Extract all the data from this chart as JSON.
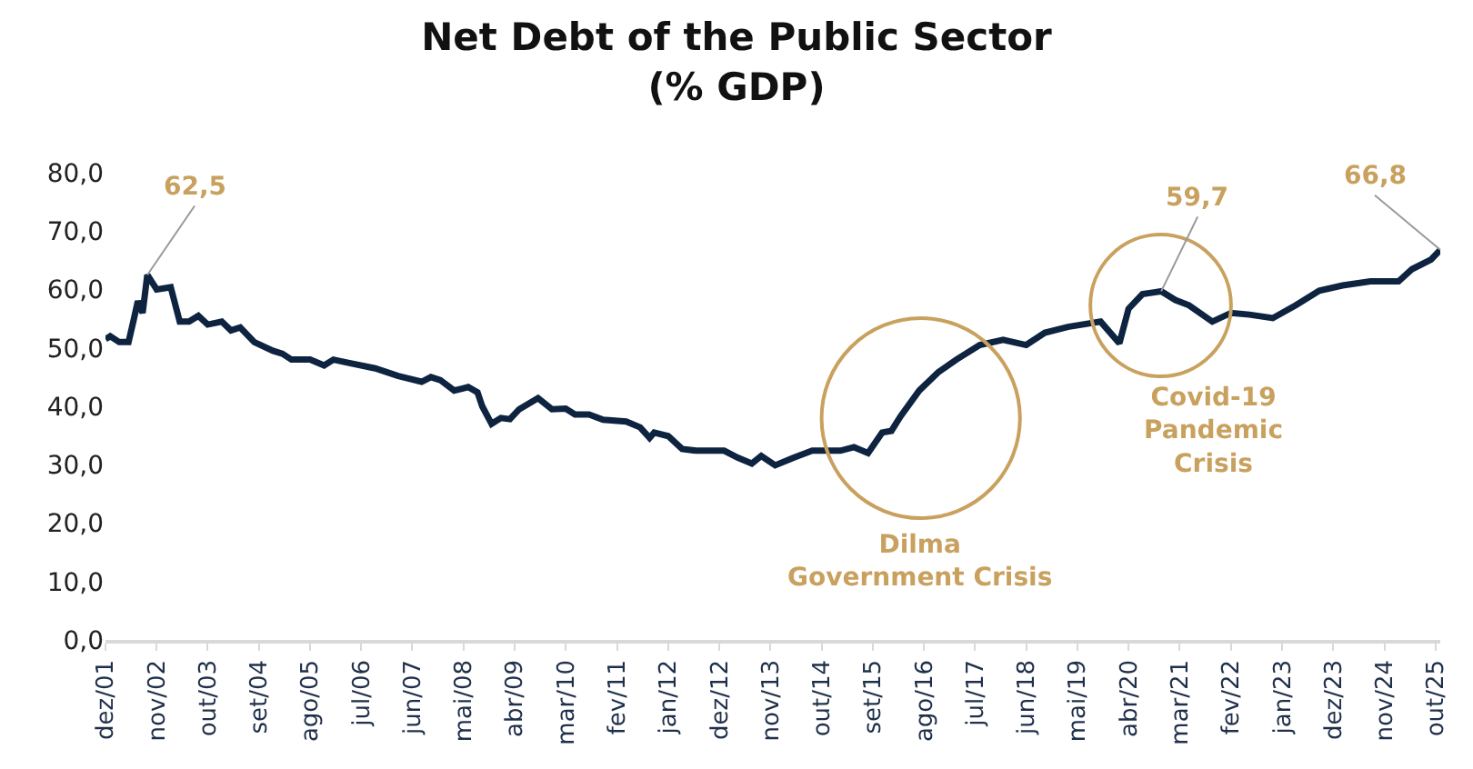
{
  "chart_data": {
    "type": "line",
    "title": "Net Debt of the Public Sector\n(% GDP)",
    "x": [
      "2001-12",
      "2002-01",
      "2002-03",
      "2002-05",
      "2002-06",
      "2002-07",
      "2002-08",
      "2002-09",
      "2002-11",
      "2003-02",
      "2003-04",
      "2003-06",
      "2003-08",
      "2003-10",
      "2004-01",
      "2004-03",
      "2004-05",
      "2004-08",
      "2004-12",
      "2005-02",
      "2005-04",
      "2005-08",
      "2005-11",
      "2006-01",
      "2006-04",
      "2006-10",
      "2007-03",
      "2007-08",
      "2007-10",
      "2007-12",
      "2008-03",
      "2008-06",
      "2008-08",
      "2008-09",
      "2008-11",
      "2009-01",
      "2009-03",
      "2009-05",
      "2009-09",
      "2009-12",
      "2010-03",
      "2010-05",
      "2010-08",
      "2010-11",
      "2011-04",
      "2011-07",
      "2011-09",
      "2011-10",
      "2012-01",
      "2012-04",
      "2012-07",
      "2013-01",
      "2013-04",
      "2013-07",
      "2013-09",
      "2013-12",
      "2014-04",
      "2014-08",
      "2015-02",
      "2015-05",
      "2015-08",
      "2015-11",
      "2016-01",
      "2016-03",
      "2016-07",
      "2016-11",
      "2017-03",
      "2017-08",
      "2018-01",
      "2018-06",
      "2018-10",
      "2019-03",
      "2019-10",
      "2020-02",
      "2020-04",
      "2020-07",
      "2020-11",
      "2021-02",
      "2021-05",
      "2021-10",
      "2022-02",
      "2022-06",
      "2022-11",
      "2023-04",
      "2023-09",
      "2024-02",
      "2024-08",
      "2025-02",
      "2025-05",
      "2025-09",
      "2025-11"
    ],
    "series": [
      {
        "color": "#0d2340",
        "values": [
          51.5,
          52,
          51,
          51,
          54.5,
          58,
          56,
          62.5,
          60,
          60.4,
          54.5,
          54.5,
          55.5,
          54,
          54.5,
          53,
          53.5,
          51,
          49.5,
          49,
          48,
          48,
          47,
          48,
          47.5,
          46.5,
          45.2,
          44.2,
          45,
          44.5,
          42.7,
          43.3,
          42.4,
          40,
          37,
          38,
          37.8,
          39.5,
          41.4,
          39.5,
          39.6,
          38.6,
          38.6,
          37.7,
          37.4,
          36.4,
          34.6,
          35.5,
          34.9,
          32.7,
          32.4,
          32.4,
          31.2,
          30.2,
          31.5,
          29.9,
          31.2,
          32.4,
          32.4,
          33,
          32,
          35.5,
          35.8,
          38.3,
          42.7,
          45.8,
          48,
          50.5,
          51.4,
          50.5,
          52.6,
          53.6,
          54.5,
          50.8,
          56.7,
          59.2,
          59.7,
          58.2,
          57.3,
          54.5,
          56,
          55.7,
          55.1,
          57.3,
          59.8,
          60.7,
          61.4,
          61.4,
          63.5,
          65.1,
          66.8
        ]
      }
    ],
    "xlim": [
      "2001-12",
      "2025-11"
    ],
    "xticks": [
      {
        "value": "2001-12",
        "label": "dez/01"
      },
      {
        "value": "2002-11",
        "label": "nov/02"
      },
      {
        "value": "2003-10",
        "label": "out/03"
      },
      {
        "value": "2004-09",
        "label": "set/04"
      },
      {
        "value": "2005-08",
        "label": "ago/05"
      },
      {
        "value": "2006-07",
        "label": "jul/06"
      },
      {
        "value": "2007-06",
        "label": "jun/07"
      },
      {
        "value": "2008-05",
        "label": "mai/08"
      },
      {
        "value": "2009-04",
        "label": "abr/09"
      },
      {
        "value": "2010-03",
        "label": "mar/10"
      },
      {
        "value": "2011-02",
        "label": "fev/11"
      },
      {
        "value": "2012-01",
        "label": "jan/12"
      },
      {
        "value": "2012-12",
        "label": "dez/12"
      },
      {
        "value": "2013-11",
        "label": "nov/13"
      },
      {
        "value": "2014-10",
        "label": "out/14"
      },
      {
        "value": "2015-09",
        "label": "set/15"
      },
      {
        "value": "2016-08",
        "label": "ago/16"
      },
      {
        "value": "2017-07",
        "label": "jul/17"
      },
      {
        "value": "2018-06",
        "label": "jun/18"
      },
      {
        "value": "2019-05",
        "label": "mai/19"
      },
      {
        "value": "2020-04",
        "label": "abr/20"
      },
      {
        "value": "2021-03",
        "label": "mar/21"
      },
      {
        "value": "2022-02",
        "label": "fev/22"
      },
      {
        "value": "2023-01",
        "label": "jan/23"
      },
      {
        "value": "2023-12",
        "label": "dez/23"
      },
      {
        "value": "2024-11",
        "label": "nov/24"
      },
      {
        "value": "2025-10",
        "label": "out/25"
      }
    ],
    "ylim": [
      0,
      80
    ],
    "yticks": [
      {
        "value": 0,
        "label": "0,0"
      },
      {
        "value": 10,
        "label": "10,0"
      },
      {
        "value": 20,
        "label": "20,0"
      },
      {
        "value": 30,
        "label": "30,0"
      },
      {
        "value": 40,
        "label": "40,0"
      },
      {
        "value": 50,
        "label": "50,0"
      },
      {
        "value": 60,
        "label": "60,0"
      },
      {
        "value": 70,
        "label": "70,0"
      },
      {
        "value": 80,
        "label": "80,0"
      }
    ],
    "annotations": [
      {
        "text": "62,5",
        "x": "2002-09",
        "y": 62.5
      },
      "Dilma\nGovernment Crisis",
      {
        "text": "59,7",
        "x": "2020-11",
        "y": 59.7
      },
      "Covid-19\nPandemic\nCrisis",
      {
        "text": "66,8",
        "x": "2025-11",
        "y": 66.8
      }
    ],
    "marker": "none",
    "line_style": "solid"
  }
}
